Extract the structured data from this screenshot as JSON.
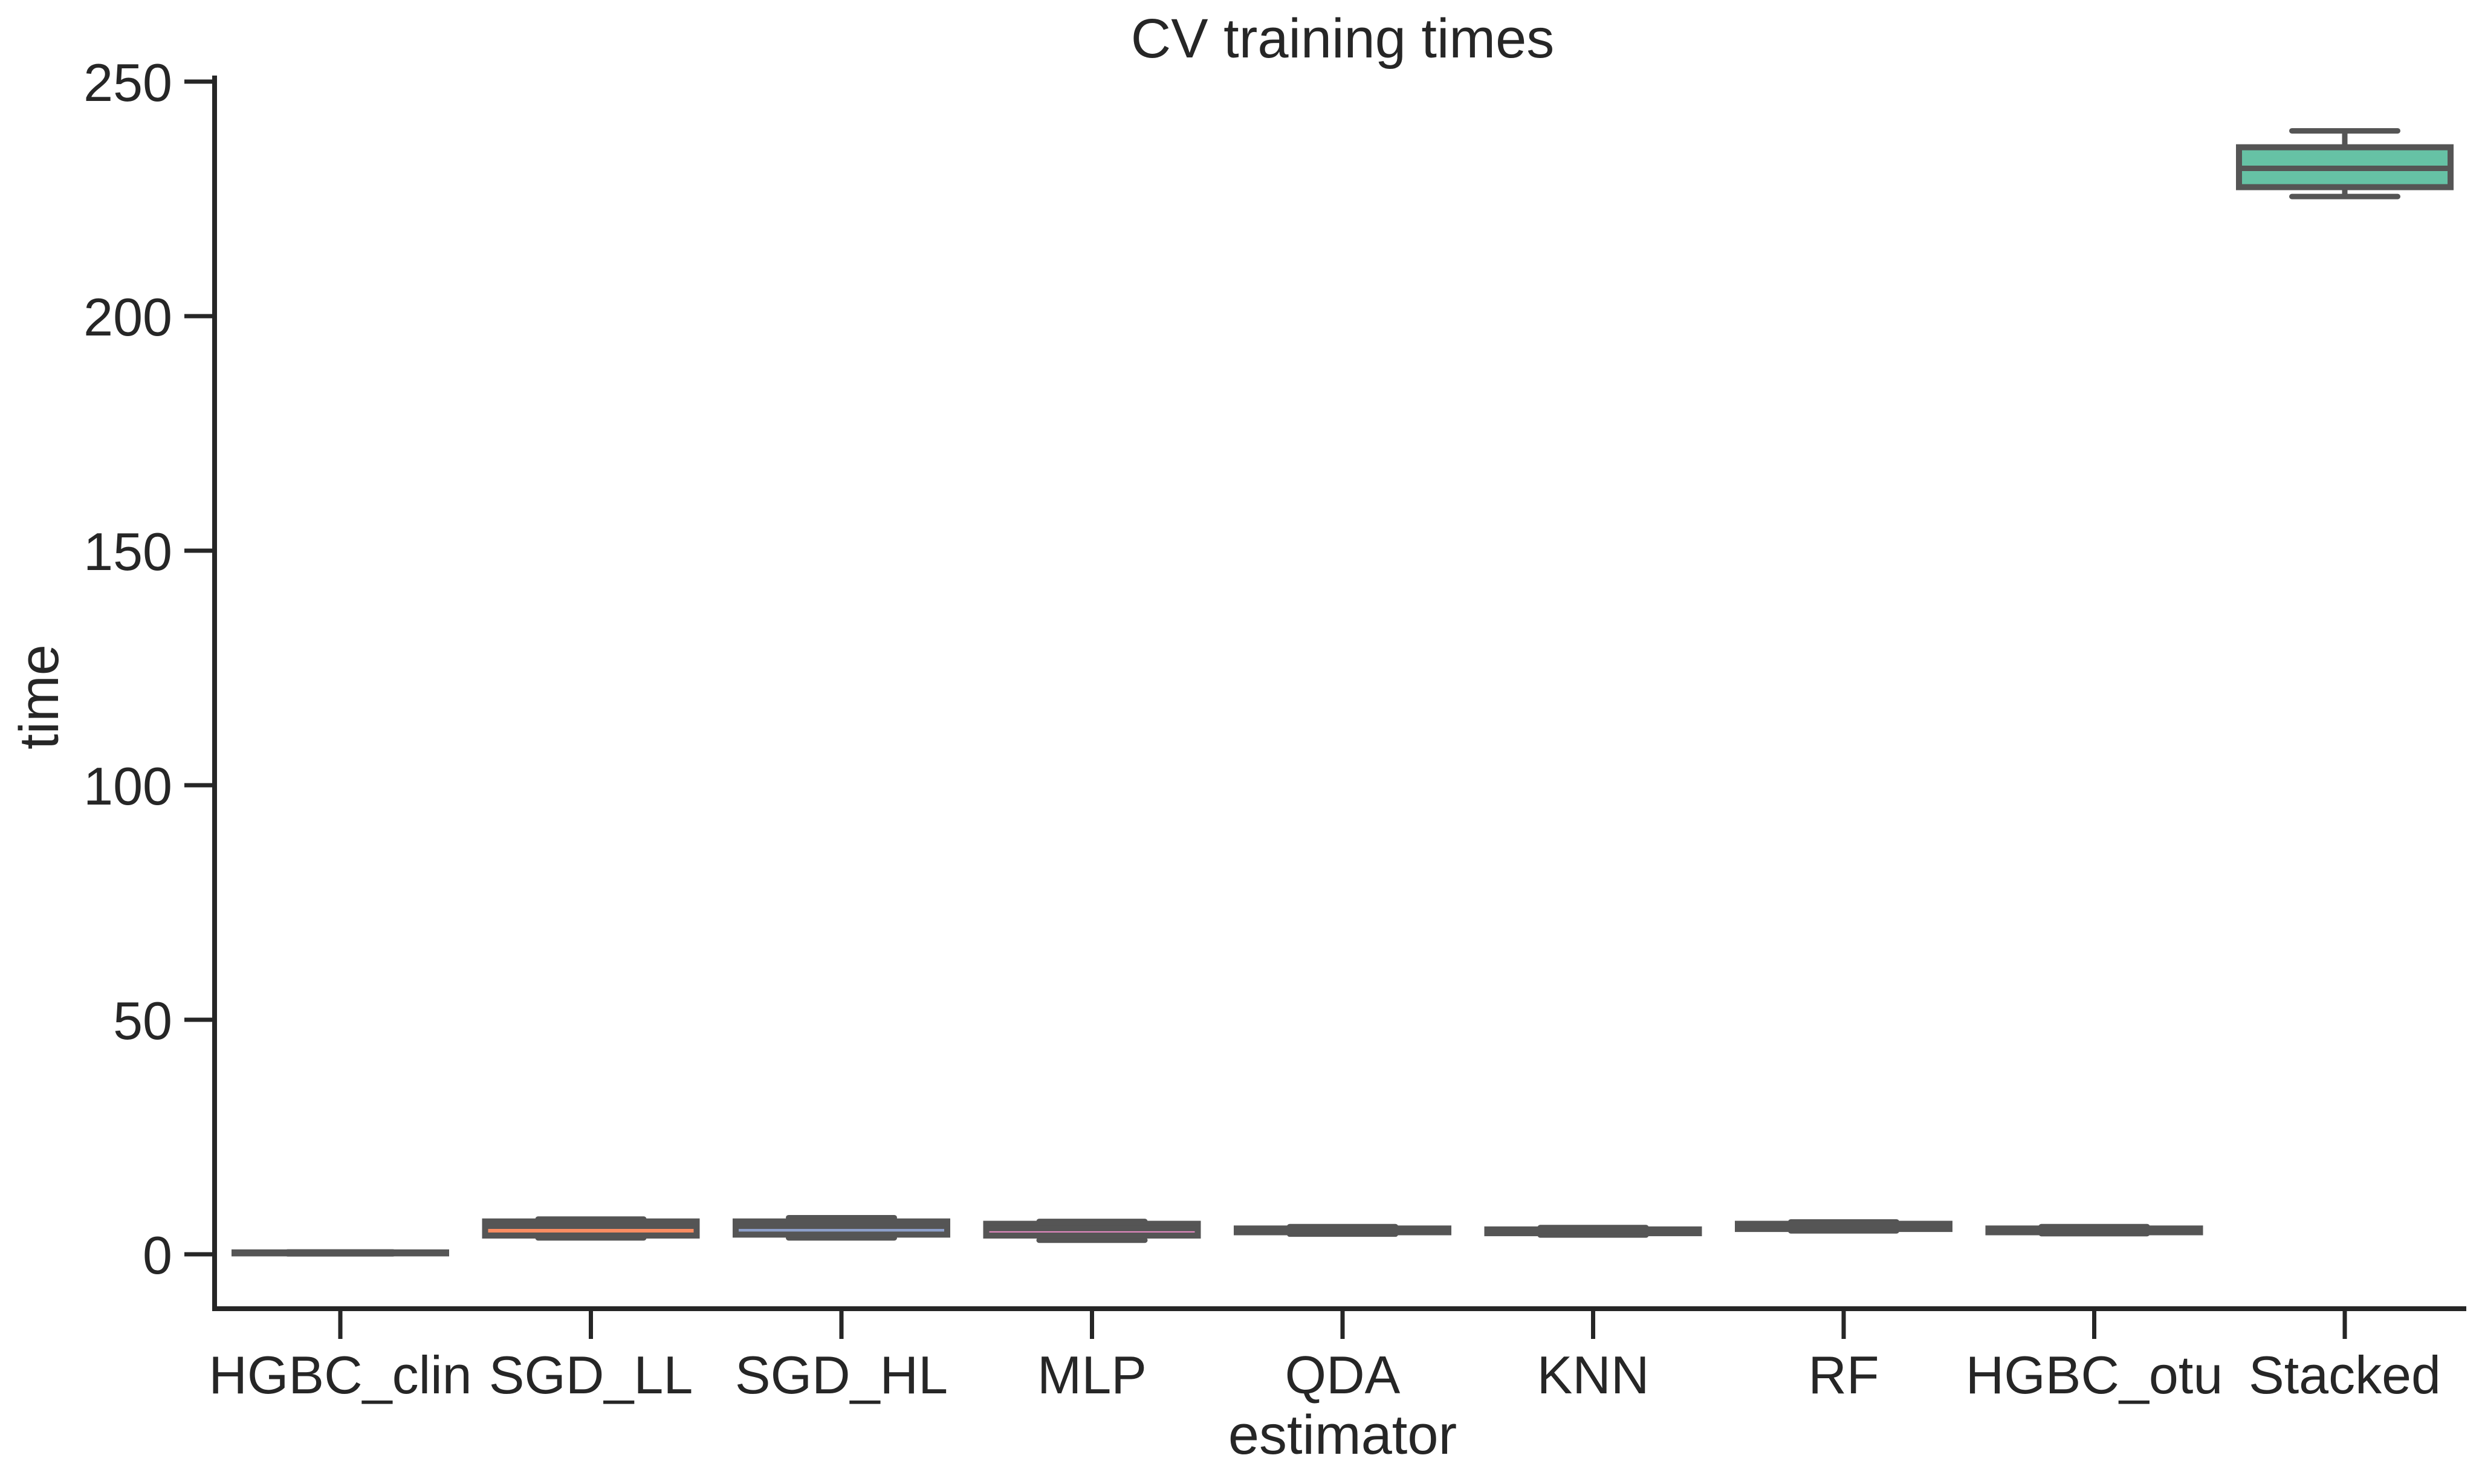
{
  "chart_data": {
    "type": "box",
    "title": "CV training times",
    "xlabel": "estimator",
    "ylabel": "time",
    "ylim": [
      -12,
      252
    ],
    "yticks": [
      0,
      50,
      100,
      150,
      200,
      250
    ],
    "grid": false,
    "categories": [
      "HGBC_clin",
      "SGD_LL",
      "SGD_HL",
      "MLP",
      "QDA",
      "KNN",
      "RF",
      "HGBC_otu",
      "Stacked"
    ],
    "boxes": [
      {
        "label": "HGBC_clin",
        "min": 0.1,
        "q1": 0.2,
        "median": 0.3,
        "q3": 0.4,
        "max": 0.5,
        "color": "#66c2a5"
      },
      {
        "label": "SGD_LL",
        "min": 3.5,
        "q1": 4.0,
        "median": 6.0,
        "q3": 7.0,
        "max": 7.5,
        "color": "#fc8d62"
      },
      {
        "label": "SGD_HL",
        "min": 3.5,
        "q1": 4.2,
        "median": 6.0,
        "q3": 7.0,
        "max": 7.8,
        "color": "#8da0cb"
      },
      {
        "label": "MLP",
        "min": 3.0,
        "q1": 4.0,
        "median": 5.5,
        "q3": 6.5,
        "max": 7.0,
        "color": "#e78ac3"
      },
      {
        "label": "QDA",
        "min": 4.3,
        "q1": 4.7,
        "median": 5.0,
        "q3": 5.5,
        "max": 5.9,
        "color": "#a6d854"
      },
      {
        "label": "KNN",
        "min": 4.1,
        "q1": 4.5,
        "median": 5.0,
        "q3": 5.3,
        "max": 5.7,
        "color": "#ffd92f"
      },
      {
        "label": "RF",
        "min": 5.0,
        "q1": 5.4,
        "median": 6.0,
        "q3": 6.5,
        "max": 6.9,
        "color": "#e5c494"
      },
      {
        "label": "HGBC_otu",
        "min": 4.4,
        "q1": 4.7,
        "median": 5.0,
        "q3": 5.5,
        "max": 5.9,
        "color": "#b3b3b3"
      },
      {
        "label": "Stacked",
        "min": 225.5,
        "q1": 227.5,
        "median": 231.5,
        "q3": 236.0,
        "max": 239.5,
        "color": "#66c2a5"
      }
    ],
    "line_color": "#555555",
    "axis_color": "#262626"
  }
}
